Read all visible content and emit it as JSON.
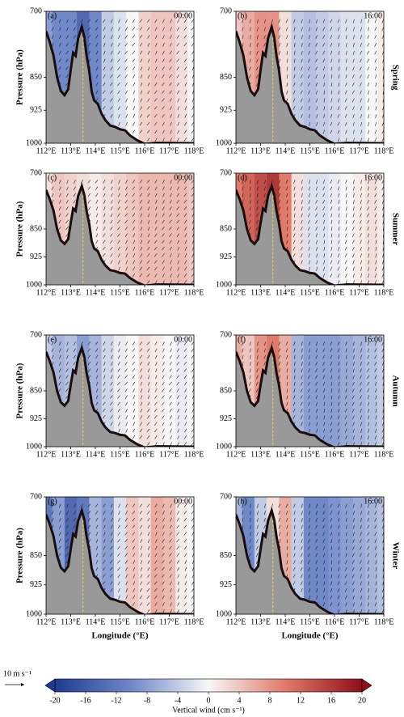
{
  "figure": {
    "reference_vector": "10 m s⁻¹",
    "colorbar": {
      "label": "Vertical wind (cm s⁻¹)",
      "clim": [
        -20,
        20
      ],
      "ticks": [
        -20,
        -16,
        -12,
        -8,
        -4,
        0,
        4,
        8,
        12,
        16,
        20
      ],
      "colors": [
        "#1f3b8f",
        "#7088c8",
        "#f7f7f7",
        "#e07a6a",
        "#8e0f19"
      ]
    }
  },
  "chart_data": [
    {
      "type": "contour",
      "panel_label": "(a)",
      "time": "00:00",
      "ylabel": "Pressure (hPa)",
      "x": [
        112,
        112.5,
        113,
        113.5,
        114,
        114.5,
        115,
        115.5,
        116,
        116.5,
        117,
        117.5,
        118
      ],
      "values": [
        -8,
        -10,
        -10,
        -14,
        -10,
        -4,
        -2,
        0,
        3,
        4,
        4,
        2,
        0
      ],
      "xlim": [
        112,
        118
      ],
      "ylim": [
        1000,
        700
      ],
      "xticks": [
        {
          "value": 112,
          "label": "112°E"
        },
        {
          "value": 113,
          "label": "113°E"
        },
        {
          "value": 114,
          "label": "114°E"
        },
        {
          "value": 115,
          "label": "115°E"
        },
        {
          "value": 116,
          "label": "116°E"
        },
        {
          "value": 117,
          "label": "117°E"
        },
        {
          "value": 118,
          "label": "118°E"
        }
      ],
      "yticks": [
        700,
        850,
        925,
        1000
      ]
    },
    {
      "type": "contour",
      "panel_label": "(b)",
      "time": "16:00",
      "season": "Spring",
      "x": [
        112,
        112.5,
        113,
        113.5,
        114,
        114.5,
        115,
        115.5,
        116,
        116.5,
        117,
        117.5,
        118
      ],
      "values": [
        4,
        6,
        8,
        8,
        2,
        -4,
        -5,
        -4,
        -3,
        -2,
        -2,
        0,
        1
      ],
      "xlim": [
        112,
        118
      ],
      "ylim": [
        1000,
        700
      ],
      "xticks": [
        {
          "value": 112,
          "label": "112°E"
        },
        {
          "value": 113,
          "label": "113°E"
        },
        {
          "value": 114,
          "label": "114°E"
        },
        {
          "value": 115,
          "label": "115°E"
        },
        {
          "value": 116,
          "label": "116°E"
        },
        {
          "value": 117,
          "label": "117°E"
        },
        {
          "value": 118,
          "label": "118°E"
        }
      ],
      "yticks": [
        700,
        850,
        925,
        1000
      ]
    },
    {
      "type": "contour",
      "panel_label": "(c)",
      "time": "00:00",
      "ylabel": "Pressure (hPa)",
      "x": [
        112,
        112.5,
        113,
        113.5,
        114,
        114.5,
        115,
        115.5,
        116,
        116.5,
        117,
        117.5,
        118
      ],
      "values": [
        2,
        4,
        3,
        2,
        1,
        2,
        3,
        4,
        5,
        5,
        5,
        5,
        4
      ],
      "xlim": [
        112,
        118
      ],
      "ylim": [
        1000,
        700
      ],
      "xticks": [
        {
          "value": 112,
          "label": "112°E"
        },
        {
          "value": 113,
          "label": "113°E"
        },
        {
          "value": 114,
          "label": "114°E"
        },
        {
          "value": 115,
          "label": "115°E"
        },
        {
          "value": 116,
          "label": "116°E"
        },
        {
          "value": 117,
          "label": "117°E"
        },
        {
          "value": 118,
          "label": "118°E"
        }
      ],
      "yticks": [
        700,
        850,
        925,
        1000
      ]
    },
    {
      "type": "contour",
      "panel_label": "(d)",
      "time": "16:00",
      "season": "Summer",
      "x": [
        112,
        112.5,
        113,
        113.5,
        114,
        114.5,
        115,
        115.5,
        116,
        116.5,
        117,
        117.5,
        118
      ],
      "values": [
        10,
        12,
        14,
        16,
        10,
        2,
        -2,
        -2,
        -1,
        0,
        1,
        2,
        1
      ],
      "xlim": [
        112,
        118
      ],
      "ylim": [
        1000,
        700
      ],
      "xticks": [
        {
          "value": 112,
          "label": "112°E"
        },
        {
          "value": 113,
          "label": "113°E"
        },
        {
          "value": 114,
          "label": "114°E"
        },
        {
          "value": 115,
          "label": "115°E"
        },
        {
          "value": 116,
          "label": "116°E"
        },
        {
          "value": 117,
          "label": "117°E"
        },
        {
          "value": 118,
          "label": "118°E"
        }
      ],
      "yticks": [
        700,
        850,
        925,
        1000
      ]
    },
    {
      "type": "contour",
      "panel_label": "(e)",
      "time": "00:00",
      "ylabel": "Pressure (hPa)",
      "x": [
        112,
        112.5,
        113,
        113.5,
        114,
        114.5,
        115,
        115.5,
        116,
        116.5,
        117,
        117.5,
        118
      ],
      "values": [
        -4,
        -6,
        -5,
        -8,
        -6,
        -3,
        -1,
        0,
        2,
        1,
        0,
        -1,
        0
      ],
      "xlim": [
        112,
        118
      ],
      "ylim": [
        1000,
        700
      ],
      "xticks": [
        {
          "value": 112,
          "label": "112°E"
        },
        {
          "value": 113,
          "label": "113°E"
        },
        {
          "value": 114,
          "label": "114°E"
        },
        {
          "value": 115,
          "label": "115°E"
        },
        {
          "value": 116,
          "label": "116°E"
        },
        {
          "value": 117,
          "label": "117°E"
        },
        {
          "value": 118,
          "label": "118°E"
        }
      ],
      "yticks": [
        700,
        850,
        925,
        1000
      ]
    },
    {
      "type": "contour",
      "panel_label": "(f)",
      "time": "16:00",
      "season": "Autumn",
      "x": [
        112,
        112.5,
        113,
        113.5,
        114,
        114.5,
        115,
        115.5,
        116,
        116.5,
        117,
        117.5,
        118
      ],
      "values": [
        6,
        4,
        8,
        10,
        6,
        -6,
        -8,
        -8,
        -8,
        -7,
        -6,
        -5,
        -4
      ],
      "xlim": [
        112,
        118
      ],
      "ylim": [
        1000,
        700
      ],
      "xticks": [
        {
          "value": 112,
          "label": "112°E"
        },
        {
          "value": 113,
          "label": "113°E"
        },
        {
          "value": 114,
          "label": "114°E"
        },
        {
          "value": 115,
          "label": "115°E"
        },
        {
          "value": 116,
          "label": "116°E"
        },
        {
          "value": 117,
          "label": "117°E"
        },
        {
          "value": 118,
          "label": "118°E"
        }
      ],
      "yticks": [
        700,
        850,
        925,
        1000
      ]
    },
    {
      "type": "contour",
      "panel_label": "(g)",
      "time": "00:00",
      "ylabel": "Pressure (hPa)",
      "xlabel": "Longitude (°E)",
      "x": [
        112,
        112.5,
        113,
        113.5,
        114,
        114.5,
        115,
        115.5,
        116,
        116.5,
        117,
        117.5,
        118
      ],
      "values": [
        -12,
        -8,
        -14,
        -12,
        -6,
        -8,
        -2,
        4,
        2,
        6,
        5,
        1,
        0
      ],
      "xlim": [
        112,
        118
      ],
      "ylim": [
        1000,
        700
      ],
      "xticks": [
        {
          "value": 112,
          "label": "112°E"
        },
        {
          "value": 113,
          "label": "113°E"
        },
        {
          "value": 114,
          "label": "114°E"
        },
        {
          "value": 115,
          "label": "115°E"
        },
        {
          "value": 116,
          "label": "116°E"
        },
        {
          "value": 117,
          "label": "117°E"
        },
        {
          "value": 118,
          "label": "118°E"
        }
      ],
      "yticks": [
        700,
        850,
        925,
        1000
      ]
    },
    {
      "type": "contour",
      "panel_label": "(h)",
      "time": "16:00",
      "season": "Winter",
      "xlabel": "Longitude (°E)",
      "x": [
        112,
        112.5,
        113,
        113.5,
        114,
        114.5,
        115,
        115.5,
        116,
        116.5,
        117,
        117.5,
        118
      ],
      "values": [
        -6,
        -10,
        -4,
        2,
        6,
        -4,
        -10,
        -10,
        -9,
        -8,
        -7,
        -6,
        -5
      ],
      "xlim": [
        112,
        118
      ],
      "ylim": [
        1000,
        700
      ],
      "xticks": [
        {
          "value": 112,
          "label": "112°E"
        },
        {
          "value": 113,
          "label": "113°E"
        },
        {
          "value": 114,
          "label": "114°E"
        },
        {
          "value": 115,
          "label": "115°E"
        },
        {
          "value": 116,
          "label": "116°E"
        },
        {
          "value": 117,
          "label": "117°E"
        },
        {
          "value": 118,
          "label": "118°E"
        }
      ],
      "yticks": [
        700,
        850,
        925,
        1000
      ]
    }
  ]
}
